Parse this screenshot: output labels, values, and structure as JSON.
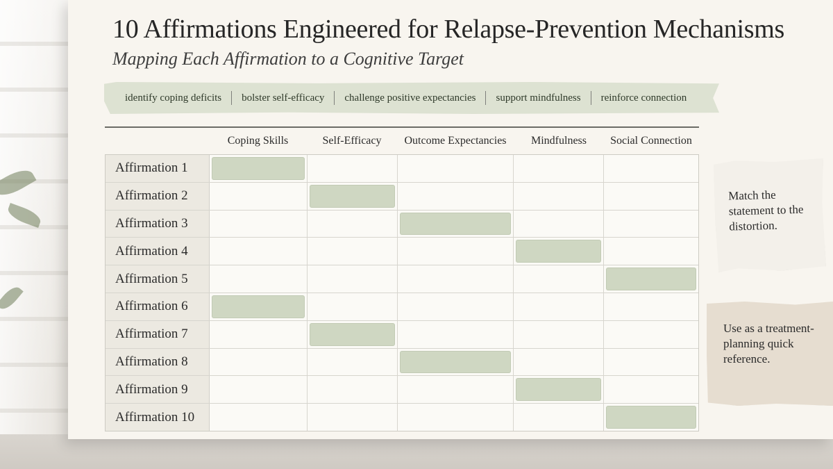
{
  "title": "10 Affirmations Engineered for Relapse-Prevention Mechanisms",
  "subtitle": "Mapping Each Affirmation to a Cognitive Target",
  "tags": [
    "identify coping deficits",
    "bolster self-efficacy",
    "challenge positive expectancies",
    "support mindfulness",
    "reinforce connection"
  ],
  "columns": [
    "Coping Skills",
    "Self-Efficacy",
    "Outcome Expectancies",
    "Mindfulness",
    "Social Connection"
  ],
  "rows": [
    {
      "label": "Affirmation 1",
      "target": 0
    },
    {
      "label": "Affirmation 2",
      "target": 1
    },
    {
      "label": "Affirmation 3",
      "target": 2
    },
    {
      "label": "Affirmation 4",
      "target": 3
    },
    {
      "label": "Affirmation 5",
      "target": 4
    },
    {
      "label": "Affirmation 6",
      "target": 0
    },
    {
      "label": "Affirmation 7",
      "target": 1
    },
    {
      "label": "Affirmation 8",
      "target": 2
    },
    {
      "label": "Affirmation 9",
      "target": 3
    },
    {
      "label": "Affirmation 10",
      "target": 4
    }
  ],
  "notes": {
    "match": "Match the statement to the distortion.",
    "reference": "Use as a treatment-planning quick reference."
  },
  "colors": {
    "highlight": "#cfd7c2",
    "ribbon": "#dde2d2",
    "paper": "#f8f5ef"
  }
}
